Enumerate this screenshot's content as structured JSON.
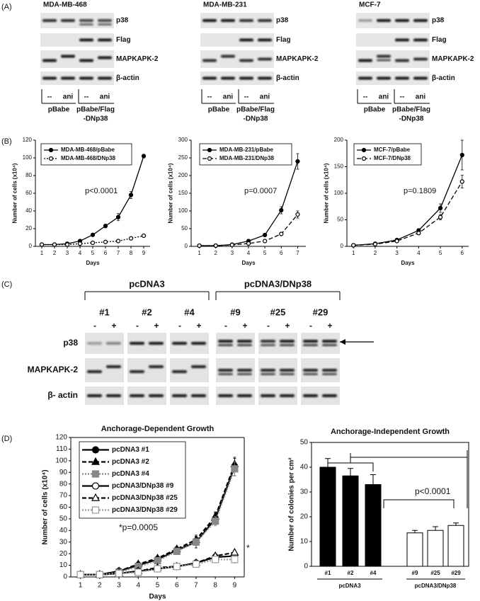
{
  "panels": [
    "(A)",
    "(B)",
    "(C)",
    "(D)"
  ],
  "blots_a": [
    {
      "title": "MDA-MB-468",
      "rows": [
        "p38",
        "Flag",
        "MAPKAPK-2",
        "β-actin"
      ],
      "lanes": [
        "--",
        "ani",
        "--",
        "ani"
      ],
      "groups": [
        [
          "pBabe"
        ],
        [
          "pBabe/Flag",
          "-DNp38"
        ]
      ]
    },
    {
      "title": "MDA-MB-231",
      "rows": [
        "p38",
        "Flag",
        "MAPKAPK-2",
        "β-actin"
      ],
      "lanes": [
        "--",
        "ani",
        "--",
        "ani"
      ],
      "groups": [
        [
          "pBabe"
        ],
        [
          "pBabe/Flag",
          "-DNp38"
        ]
      ]
    },
    {
      "title": "MCF-7",
      "rows": [
        "p38",
        "Flag",
        "MAPKAPK-2",
        "β-actin"
      ],
      "lanes": [
        "--",
        "ani",
        "--",
        "ani"
      ],
      "groups": [
        [
          "pBabe"
        ],
        [
          "pBabe/Flag",
          "-DNp38"
        ]
      ]
    }
  ],
  "blot_c": {
    "groups": [
      "pcDNA3",
      "pcDNA3/DNp38"
    ],
    "clones": [
      "#1",
      "#2",
      "#4",
      "#9",
      "#25",
      "#29"
    ],
    "lanes": [
      "-",
      "+"
    ],
    "rows": [
      "p38",
      "MAPKAPK-2",
      "β- actin"
    ]
  },
  "chart_data": [
    {
      "type": "line",
      "x": [
        1,
        2,
        3,
        4,
        5,
        6,
        7,
        8,
        9
      ],
      "xlim": [
        0.5,
        9.5
      ],
      "xticks": [
        1,
        2,
        3,
        4,
        5,
        6,
        7,
        8,
        9
      ],
      "ylim": [
        0,
        120
      ],
      "yticks": [
        0,
        20,
        40,
        60,
        80,
        100,
        120
      ],
      "xlabel": "Days",
      "ylabel": "Number of cells (x10⁴)",
      "annotations": [
        "p<0.0001"
      ],
      "series": [
        {
          "name": "MDA-MB-468/pBabe",
          "color": "#000000",
          "dash": "solid",
          "marker": "circle",
          "values": [
            2,
            2,
            3,
            6,
            13,
            23,
            33,
            58,
            102
          ],
          "errors": [
            0,
            0,
            0,
            1,
            1,
            2,
            4,
            4,
            2
          ]
        },
        {
          "name": "MDA-MB-468/DNp38",
          "color": "#000000",
          "dash": "dotted",
          "marker": "open-circle",
          "values": [
            2,
            2,
            2,
            3,
            4,
            5,
            6,
            9,
            12
          ],
          "errors": [
            0,
            0,
            0,
            0,
            0,
            1,
            1,
            1,
            1
          ]
        }
      ]
    },
    {
      "type": "line",
      "x": [
        1,
        2,
        3,
        4,
        5,
        6,
        7
      ],
      "xlim": [
        0.5,
        7.5
      ],
      "xticks": [
        1,
        2,
        3,
        4,
        5,
        6,
        7
      ],
      "ylim": [
        0,
        300
      ],
      "yticks": [
        0,
        50,
        100,
        150,
        200,
        250,
        300
      ],
      "xlabel": "Days",
      "ylabel": "Number of cells (x10⁴)",
      "annotations": [
        "p=0.0007"
      ],
      "series": [
        {
          "name": "MDA-MB-231/pBabe",
          "color": "#000000",
          "dash": "solid",
          "marker": "circle",
          "values": [
            2,
            2,
            5,
            15,
            32,
            102,
            240
          ],
          "errors": [
            0,
            0,
            0,
            2,
            3,
            10,
            22
          ]
        },
        {
          "name": "MDA-MB-231/DNp38",
          "color": "#000000",
          "dash": "dashed",
          "marker": "open-circle",
          "values": [
            2,
            2,
            4,
            8,
            15,
            35,
            90
          ],
          "errors": [
            0,
            0,
            0,
            1,
            2,
            4,
            10
          ]
        }
      ]
    },
    {
      "type": "line",
      "x": [
        1,
        2,
        3,
        4,
        5,
        6
      ],
      "xlim": [
        0.7,
        6.3
      ],
      "xticks": [
        1,
        2,
        3,
        4,
        5,
        6
      ],
      "ylim": [
        0,
        200
      ],
      "yticks": [
        0,
        50,
        100,
        150,
        200
      ],
      "xlabel": "Days",
      "ylabel": "Number of cells (x10⁴)",
      "annotations": [
        "p=0.1809"
      ],
      "series": [
        {
          "name": "MCF-7/pBabe",
          "color": "#000000",
          "dash": "solid",
          "marker": "circle",
          "values": [
            2,
            5,
            12,
            30,
            72,
            172
          ],
          "errors": [
            0,
            1,
            1,
            3,
            8,
            28
          ]
        },
        {
          "name": "MCF-7/DNp38",
          "color": "#000000",
          "dash": "dashed",
          "marker": "open-circle",
          "values": [
            2,
            4,
            10,
            25,
            55,
            122
          ],
          "errors": [
            0,
            1,
            2,
            3,
            5,
            12
          ]
        }
      ]
    },
    {
      "type": "line",
      "title": "Anchorage-Dependent Growth",
      "x": [
        1,
        2,
        3,
        4,
        5,
        6,
        7,
        8,
        9
      ],
      "xlim": [
        0.5,
        9.5
      ],
      "xticks": [
        1,
        2,
        3,
        4,
        5,
        6,
        7,
        8,
        9
      ],
      "ylim": [
        0,
        120
      ],
      "yticks": [
        0,
        10,
        20,
        30,
        40,
        50,
        60,
        70,
        80,
        90,
        100,
        110,
        120
      ],
      "xlabel": "Days",
      "ylabel": "Number of cells (x10⁴)",
      "annotations": [
        "*p=0.0005",
        "*"
      ],
      "series": [
        {
          "name": "pcDNA3 #1",
          "color": "#000000",
          "dash": "solid",
          "marker": "circle",
          "values": [
            2,
            2,
            5,
            10,
            15,
            23,
            30,
            50,
            95
          ],
          "errors": [
            0,
            0,
            1,
            2,
            2,
            3,
            5,
            5,
            8
          ]
        },
        {
          "name": "pcDNA3 #2",
          "color": "#000000",
          "dash": "dashed",
          "marker": "triangle",
          "values": [
            2,
            2,
            5,
            11,
            16,
            24,
            32,
            52,
            97
          ],
          "errors": [
            0,
            0,
            1,
            2,
            2,
            2,
            4,
            4,
            5
          ]
        },
        {
          "name": "pcDNA3 #4",
          "color": "#888888",
          "dash": "dotted",
          "marker": "square",
          "values": [
            2,
            2,
            4,
            9,
            14,
            22,
            30,
            48,
            93
          ],
          "errors": [
            0,
            0,
            1,
            1,
            2,
            2,
            3,
            4,
            6
          ]
        },
        {
          "name": "pcDNA3/DNp38 #9",
          "color": "#000000",
          "dash": "solid",
          "marker": "open-circle",
          "values": [
            2,
            2,
            3,
            5,
            7,
            9,
            12,
            17,
            18
          ],
          "errors": [
            0,
            0,
            0,
            1,
            1,
            1,
            2,
            2,
            2
          ]
        },
        {
          "name": "pcDNA3/DNp38 #25",
          "color": "#000000",
          "dash": "dashed",
          "marker": "open-triangle",
          "values": [
            2,
            2,
            3,
            5,
            8,
            9,
            12,
            18,
            21
          ],
          "errors": [
            0,
            0,
            0,
            1,
            1,
            1,
            2,
            2,
            2
          ]
        },
        {
          "name": "pcDNA3/DNp38 #29",
          "color": "#999999",
          "dash": "dotted",
          "marker": "open-square",
          "values": [
            2,
            2,
            3,
            4,
            7,
            9,
            11,
            15,
            15
          ],
          "errors": [
            0,
            0,
            0,
            1,
            1,
            1,
            2,
            2,
            3
          ]
        }
      ]
    },
    {
      "type": "bar",
      "title": "Anchorage-Independent Growth",
      "categories": [
        "#1",
        "#2",
        "#4",
        "#9",
        "#25",
        "#29"
      ],
      "values": [
        40,
        36.5,
        33,
        13.5,
        14.5,
        16.5
      ],
      "errors": [
        3.5,
        3,
        4,
        1,
        1.5,
        1
      ],
      "colors": [
        "#000000",
        "#000000",
        "#000000",
        "#ffffff",
        "#ffffff",
        "#ffffff"
      ],
      "ylim": [
        0,
        50
      ],
      "yticks": [
        0,
        10,
        20,
        30,
        40,
        50
      ],
      "ylabel": "Number of colonies per cm²",
      "group_labels": [
        "pcDNA3",
        "pcDNA3/DNp38"
      ],
      "annotations": [
        "p<0.0001"
      ]
    }
  ]
}
